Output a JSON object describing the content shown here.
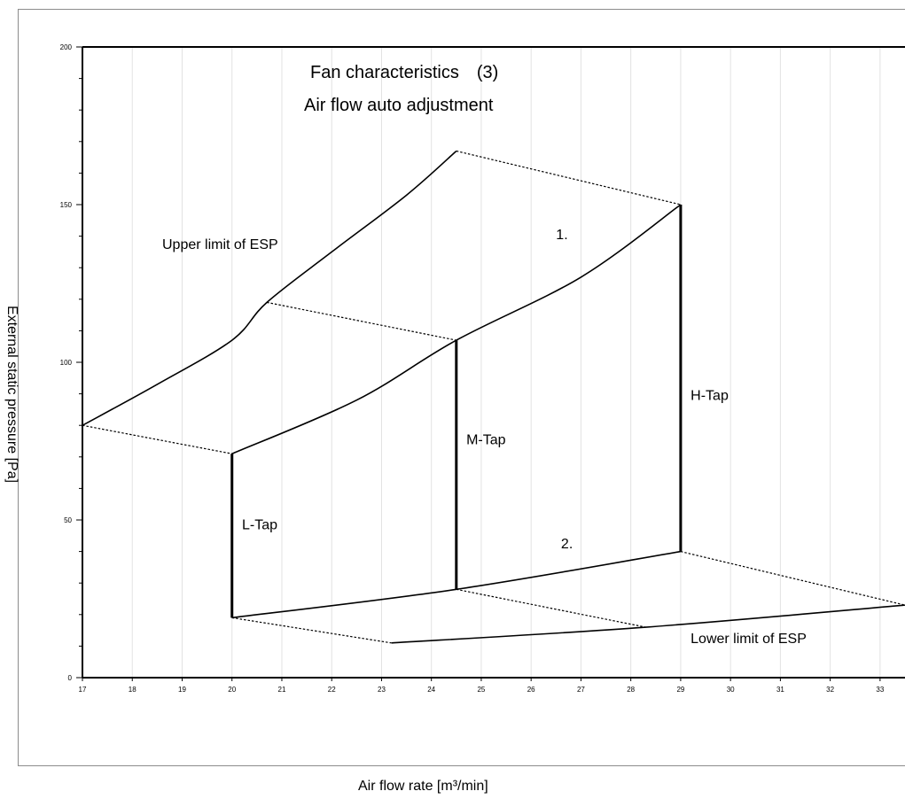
{
  "chart_data": {
    "type": "line",
    "title": "Fan characteristics　(3)",
    "subtitle": "Air flow auto adjustment",
    "xlabel": "Air flow rate [m³/min]",
    "ylabel": "External static pressure [Pa]",
    "xlim": [
      17,
      33.5
    ],
    "ylim": [
      0,
      200
    ],
    "x_ticks": [
      17,
      18,
      19,
      20,
      21,
      22,
      23,
      24,
      25,
      26,
      27,
      28,
      29,
      30,
      31,
      32,
      33
    ],
    "y_ticks": [
      0,
      50,
      100,
      150,
      200
    ],
    "grid": "vertical",
    "series": [
      {
        "style": "solid",
        "points": [
          [
            17,
            80
          ],
          [
            18.5,
            93
          ],
          [
            20,
            107
          ],
          [
            20.7,
            119
          ],
          [
            22,
            135
          ],
          [
            23.5,
            153
          ],
          [
            24.5,
            167
          ]
        ]
      },
      {
        "style": "solid",
        "points": [
          [
            20,
            71
          ],
          [
            22.5,
            88
          ],
          [
            24.5,
            107
          ],
          [
            27,
            127
          ],
          [
            29,
            150
          ]
        ]
      },
      {
        "style": "solid",
        "points": [
          [
            20,
            19
          ],
          [
            24.5,
            28
          ],
          [
            29,
            40
          ]
        ]
      },
      {
        "style": "solid",
        "points": [
          [
            23.2,
            11
          ],
          [
            28.3,
            16
          ],
          [
            33.5,
            23
          ]
        ]
      },
      {
        "style": "dashed",
        "points": [
          [
            24.5,
            167
          ],
          [
            29,
            150
          ]
        ]
      },
      {
        "style": "dashed",
        "points": [
          [
            20.7,
            119
          ],
          [
            24.5,
            107
          ]
        ]
      },
      {
        "style": "dashed",
        "points": [
          [
            17,
            80
          ],
          [
            20,
            71
          ]
        ]
      },
      {
        "style": "dashed",
        "points": [
          [
            20,
            19
          ],
          [
            23.2,
            11
          ]
        ]
      },
      {
        "style": "dashed",
        "points": [
          [
            24.5,
            28
          ],
          [
            28.3,
            16
          ]
        ]
      },
      {
        "style": "dashed",
        "points": [
          [
            29,
            40
          ],
          [
            33.5,
            23
          ]
        ]
      },
      {
        "style": "tap",
        "points": [
          [
            20,
            71
          ],
          [
            20,
            19
          ]
        ]
      },
      {
        "style": "tap",
        "points": [
          [
            24.5,
            107
          ],
          [
            24.5,
            28
          ]
        ]
      },
      {
        "style": "tap",
        "points": [
          [
            29,
            150
          ],
          [
            29,
            40
          ]
        ]
      }
    ],
    "annotations": [
      {
        "text": "Upper limit of ESP",
        "x": 18.6,
        "y": 136
      },
      {
        "text": "1.",
        "x": 26.5,
        "y": 139
      },
      {
        "text": "H-Tap",
        "x": 29.2,
        "y": 88
      },
      {
        "text": "M-Tap",
        "x": 24.7,
        "y": 74
      },
      {
        "text": "L-Tap",
        "x": 20.2,
        "y": 47
      },
      {
        "text": "2.",
        "x": 26.6,
        "y": 41
      },
      {
        "text": "Lower limit of ESP",
        "x": 29.2,
        "y": 11
      }
    ]
  }
}
